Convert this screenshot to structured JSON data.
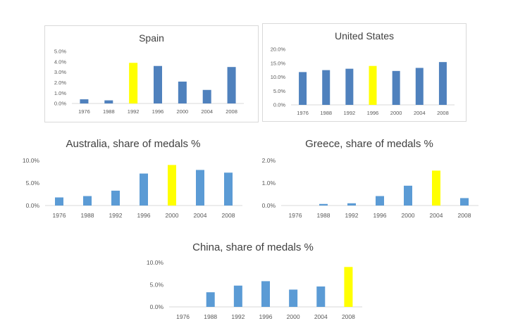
{
  "colors": {
    "dark_bar": "#4f81bd",
    "light_bar": "#5b9bd5",
    "highlight": "#ffff00",
    "axis": "#d9d9d9",
    "text": "#595959"
  },
  "chart_data": [
    {
      "type": "bar",
      "title": "Spain",
      "categories": [
        "1976",
        "1988",
        "1992",
        "1996",
        "2000",
        "2004",
        "2008"
      ],
      "values": [
        0.4,
        0.3,
        3.9,
        3.6,
        2.1,
        1.3,
        3.5
      ],
      "highlight_category": "1992",
      "yticks": [
        "0.0%",
        "1.0%",
        "2.0%",
        "3.0%",
        "4.0%",
        "5.0%"
      ],
      "ylim": [
        0,
        5
      ],
      "bar_color": "#4f81bd",
      "highlight_color": "#ffff00",
      "grid": false
    },
    {
      "type": "bar",
      "title": "United States",
      "categories": [
        "1976",
        "1988",
        "1992",
        "1996",
        "2000",
        "2004",
        "2008"
      ],
      "values": [
        11.8,
        12.5,
        13.0,
        14.0,
        12.2,
        13.3,
        15.4
      ],
      "highlight_category": "1996",
      "yticks": [
        "0.0%",
        "5.0%",
        "10.0%",
        "15.0%",
        "20.0%"
      ],
      "ylim": [
        0,
        20
      ],
      "bar_color": "#4f81bd",
      "highlight_color": "#ffff00",
      "grid": false
    },
    {
      "type": "bar",
      "title": "Australia, share of medals %",
      "categories": [
        "1976",
        "1988",
        "1992",
        "1996",
        "2000",
        "2004",
        "2008"
      ],
      "values": [
        1.8,
        2.1,
        3.3,
        7.1,
        9.0,
        7.9,
        7.3
      ],
      "highlight_category": "2000",
      "yticks": [
        "0.0%",
        "5.0%",
        "10.0%"
      ],
      "ylim": [
        0,
        10
      ],
      "bar_color": "#5b9bd5",
      "highlight_color": "#ffff00",
      "grid": false
    },
    {
      "type": "bar",
      "title": "Greece, share of medals %",
      "categories": [
        "1976",
        "1988",
        "1992",
        "1996",
        "2000",
        "2004",
        "2008"
      ],
      "values": [
        0.0,
        0.07,
        0.1,
        0.42,
        0.88,
        1.55,
        0.33
      ],
      "highlight_category": "2004",
      "yticks": [
        "0.0%",
        "1.0%",
        "2.0%"
      ],
      "ylim": [
        0,
        2
      ],
      "bar_color": "#5b9bd5",
      "highlight_color": "#ffff00",
      "grid": false
    },
    {
      "type": "bar",
      "title": "China, share of medals %",
      "categories": [
        "1976",
        "1988",
        "1992",
        "1996",
        "2000",
        "2004",
        "2008"
      ],
      "values": [
        0.0,
        3.3,
        4.8,
        5.8,
        3.9,
        4.6,
        9.0
      ],
      "highlight_category": "2008",
      "yticks": [
        "0.0%",
        "5.0%",
        "10.0%"
      ],
      "ylim": [
        0,
        10
      ],
      "bar_color": "#5b9bd5",
      "highlight_color": "#ffff00",
      "grid": false
    }
  ]
}
